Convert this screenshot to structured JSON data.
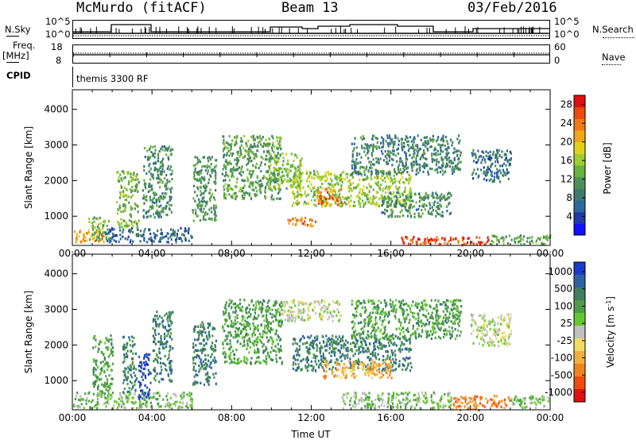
{
  "header": {
    "station": "McMurdo (fitACF)",
    "beam": "Beam 13",
    "date": "03/Feb/2016"
  },
  "top_panels": {
    "nsky_label": "N.Sky",
    "nsky_ticks": [
      "10^5",
      "10^0"
    ],
    "nsearch_label": "N.Search",
    "nsearch_ticks": [
      "10^5",
      "10^0"
    ],
    "freq_label": "Freq.",
    "freq_unit": "[MHz]",
    "freq_ticks": [
      "18",
      "8"
    ],
    "nave_label": "Nave",
    "nave_ticks": [
      "60",
      "0"
    ],
    "cpid_label": "CPID",
    "cpid_value": "themis 3300 RF"
  },
  "chart_data": [
    {
      "type": "heatmap",
      "name": "power",
      "ylabel": "Slant Range [km]",
      "xlabel": "",
      "x_ticks": [
        "00:00",
        "04:00",
        "08:00",
        "12:00",
        "16:00",
        "20:00",
        "00:00"
      ],
      "xlim_hours": [
        0,
        24
      ],
      "ylim_km": [
        180,
        4550
      ],
      "y_ticks": [
        1000,
        2000,
        3000,
        4000
      ],
      "colorbar": {
        "label": "Power [dB]",
        "ticks": [
          4,
          8,
          12,
          16,
          20,
          24,
          28
        ],
        "range": [
          0,
          30
        ],
        "colors": [
          "#1010ff",
          "#1e3aa8",
          "#2f67a0",
          "#3f7a6a",
          "#4e9158",
          "#66b340",
          "#9fcc2e",
          "#e0d21c",
          "#f0a818",
          "#f07a14",
          "#e84a10",
          "#e01010"
        ]
      },
      "echo_regions": [
        {
          "t": [
            0.0,
            1.6
          ],
          "r": [
            300,
            650
          ],
          "level": 22
        },
        {
          "t": [
            0.8,
            1.8
          ],
          "r": [
            300,
            1000
          ],
          "level": 14
        },
        {
          "t": [
            1.6,
            6.0
          ],
          "r": [
            300,
            700
          ],
          "level": 6
        },
        {
          "t": [
            2.2,
            3.3
          ],
          "r": [
            700,
            2300
          ],
          "level": 14
        },
        {
          "t": [
            3.5,
            5.0
          ],
          "r": [
            1000,
            3000
          ],
          "level": 10
        },
        {
          "t": [
            6.0,
            7.2
          ],
          "r": [
            900,
            2700
          ],
          "level": 11
        },
        {
          "t": [
            7.5,
            10.5
          ],
          "r": [
            1500,
            3300
          ],
          "level": 12
        },
        {
          "t": [
            9.8,
            11.5
          ],
          "r": [
            1800,
            2800
          ],
          "level": 15
        },
        {
          "t": [
            10.8,
            12.2
          ],
          "r": [
            750,
            1000
          ],
          "level": 24
        },
        {
          "t": [
            11.0,
            17.0
          ],
          "r": [
            1300,
            2300
          ],
          "level": 16
        },
        {
          "t": [
            12.3,
            13.5
          ],
          "r": [
            1350,
            1800
          ],
          "level": 26
        },
        {
          "t": [
            14.0,
            19.5
          ],
          "r": [
            2200,
            3300
          ],
          "level": 9
        },
        {
          "t": [
            15.5,
            19.0
          ],
          "r": [
            1000,
            1700
          ],
          "level": 10
        },
        {
          "t": [
            16.5,
            21.0
          ],
          "r": [
            220,
            450
          ],
          "level": 27
        },
        {
          "t": [
            20.0,
            22.0
          ],
          "r": [
            2000,
            2900
          ],
          "level": 7
        },
        {
          "t": [
            21.0,
            24.0
          ],
          "r": [
            230,
            500
          ],
          "level": 12
        }
      ]
    },
    {
      "type": "heatmap",
      "name": "velocity",
      "ylabel": "Slant Range [km]",
      "xlabel": "Time UT",
      "x_ticks": [
        "00:00",
        "04:00",
        "08:00",
        "12:00",
        "16:00",
        "20:00",
        "00:00"
      ],
      "xlim_hours": [
        0,
        24
      ],
      "ylim_km": [
        180,
        4550
      ],
      "y_ticks": [
        1000,
        2000,
        3000,
        4000
      ],
      "colorbar": {
        "label": "Velocity [m s",
        "label_sup": "-1",
        "label_end": "]",
        "ticks": [
          "1000",
          "500",
          "100",
          "25",
          "-25",
          "-100",
          "-500",
          "-1000"
        ],
        "colors": [
          "#1a3acc",
          "#2d63a0",
          "#3d7f60",
          "#4e9c4a",
          "#66c830",
          "#c0c0c0",
          "#f0dc60",
          "#f0b040",
          "#f08420",
          "#f04a10",
          "#e01010"
        ]
      },
      "echo_regions": [
        {
          "t": [
            0.0,
            6.0
          ],
          "r": [
            250,
            700
          ],
          "v": 4
        },
        {
          "t": [
            1.0,
            2.0
          ],
          "r": [
            600,
            2300
          ],
          "v": 3
        },
        {
          "t": [
            2.5,
            3.2
          ],
          "r": [
            700,
            2300
          ],
          "v": 2
        },
        {
          "t": [
            3.3,
            3.9
          ],
          "r": [
            500,
            1800
          ],
          "v": 0
        },
        {
          "t": [
            4.0,
            5.0
          ],
          "r": [
            1000,
            3000
          ],
          "v": 2
        },
        {
          "t": [
            6.0,
            7.2
          ],
          "r": [
            900,
            2700
          ],
          "v": 2
        },
        {
          "t": [
            7.5,
            10.5
          ],
          "r": [
            1500,
            3300
          ],
          "v": 3
        },
        {
          "t": [
            10.5,
            13.5
          ],
          "r": [
            2700,
            3300
          ],
          "v": 5
        },
        {
          "t": [
            11.0,
            17.0
          ],
          "r": [
            1300,
            2300
          ],
          "v": 2
        },
        {
          "t": [
            12.5,
            16.0
          ],
          "r": [
            1100,
            1600
          ],
          "v": 7
        },
        {
          "t": [
            13.5,
            19.0
          ],
          "r": [
            250,
            700
          ],
          "v": 4
        },
        {
          "t": [
            14.0,
            19.5
          ],
          "r": [
            2200,
            3300
          ],
          "v": 3
        },
        {
          "t": [
            19.0,
            22.0
          ],
          "r": [
            200,
            600
          ],
          "v": 8
        },
        {
          "t": [
            20.0,
            22.0
          ],
          "r": [
            2000,
            2900
          ],
          "v": 5
        },
        {
          "t": [
            22.0,
            24.0
          ],
          "r": [
            250,
            600
          ],
          "v": 4
        }
      ]
    }
  ]
}
